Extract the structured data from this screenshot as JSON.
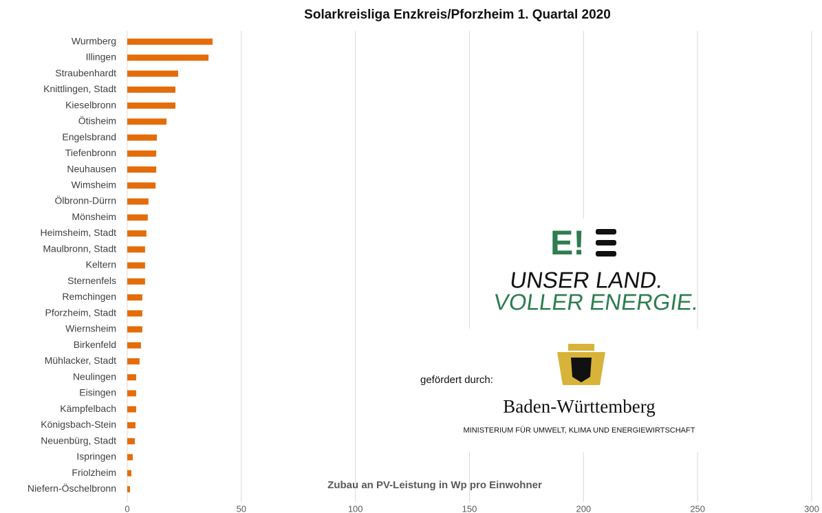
{
  "chart_data": {
    "type": "bar",
    "orientation": "horizontal",
    "title": "Solarkreisliga Enzkreis/Pforzheim 1. Quartal 2020",
    "x_label": "Zubau an PV-Leistung in Wp pro Einwohner",
    "categories": [
      "Wurmberg",
      "Illingen",
      "Straubenhardt",
      "Knittlingen, Stadt",
      "Kieselbronn",
      "Ötisheim",
      "Engelsbrand",
      "Tiefenbronn",
      "Neuhausen",
      "Wimsheim",
      "Ölbronn-Dürrn",
      "Mönsheim",
      "Heimsheim, Stadt",
      "Maulbronn, Stadt",
      "Keltern",
      "Sternenfels",
      "Remchingen",
      "Pforzheim, Stadt",
      "Wiernsheim",
      "Birkenfeld",
      "Mühlacker, Stadt",
      "Neulingen",
      "Eisingen",
      "Kämpfelbach",
      "Königsbach-Stein",
      "Neuenbürg, Stadt",
      "Ispringen",
      "Friolzheim",
      "Niefern-Öschelbronn"
    ],
    "values": [
      37.4,
      35.6,
      22.3,
      21.1,
      21.1,
      17.2,
      13,
      12.7,
      12.7,
      12.4,
      9.3,
      9,
      8.4,
      7.8,
      7.8,
      7.8,
      6.6,
      6.6,
      6.6,
      6,
      5.4,
      3.9,
      3.9,
      3.9,
      3.6,
      3.3,
      2.4,
      1.8,
      1.2
    ],
    "color": "#e46c0a",
    "xlim": [
      0,
      300
    ],
    "xticks": [
      0,
      50,
      100,
      150,
      200,
      250,
      300
    ],
    "grid": true,
    "annotations": [
      "E!",
      "UNSER LAND.",
      "VOLLER ENERGIE.",
      "gefördert durch:",
      "Baden-Württemberg",
      "MINISTERIUM FÜR UMWELT, KLIMA UND ENERGIEWIRTSCHAFT"
    ]
  }
}
